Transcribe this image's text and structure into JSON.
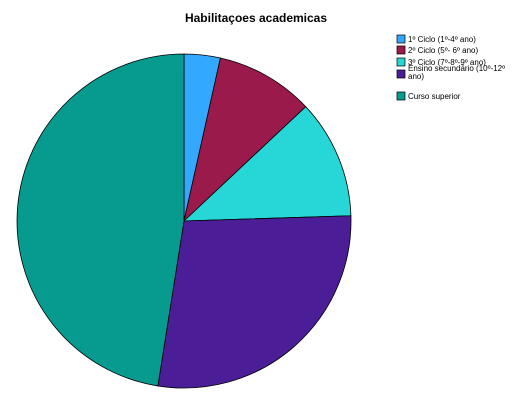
{
  "chart_data": {
    "type": "pie",
    "title": "Habilitaçoes academicas",
    "categories": [
      "1º Ciclo (1º-4º ano)",
      "2º Ciclo (5º- 6º ano)",
      "3º Ciclo (7º-8º-9º ano)",
      "Ensino secundário (10º-12º ano)",
      "Curso superior"
    ],
    "values": [
      3.5,
      9.5,
      11.5,
      28.0,
      47.5
    ],
    "colors": [
      "#33a8ff",
      "#9b1a4c",
      "#27d6d6",
      "#4b1e97",
      "#079b90"
    ],
    "legend_position": "right",
    "start_angle_deg": 0,
    "direction": "clockwise",
    "legend": {
      "entries": [
        {
          "text": "1º Ciclo (1º-4º ano)"
        },
        {
          "text": "2º Ciclo (5º- 6º ano)"
        },
        {
          "text": "3º Ciclo (7º-8º-9º ano)"
        },
        {
          "text_lines": [
            "Ensino secundário (10º-12º",
            "ano)"
          ]
        },
        {
          "text": "Curso superior"
        }
      ]
    }
  }
}
